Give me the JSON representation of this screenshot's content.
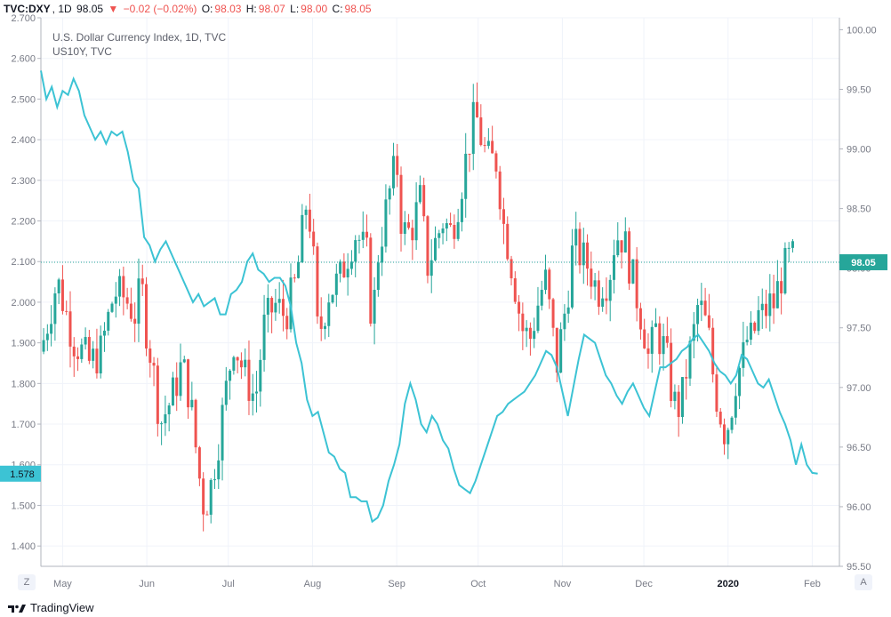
{
  "header": {
    "symbol": "TVC:DXY",
    "interval": "1D",
    "last": "98.05",
    "arrow": "▼",
    "change": "−0.02 (−0.02%)",
    "o_label": "O:",
    "o_value": "98.03",
    "h_label": "H:",
    "h_value": "98.07",
    "l_label": "L:",
    "l_value": "98.00",
    "c_label": "C:",
    "c_value": "98.05"
  },
  "legend": {
    "main": "U.S. Dollar Currency Index, 1D, TVC",
    "overlay": "US10Y, TVC"
  },
  "corners": {
    "left": "Z",
    "right": "A"
  },
  "brand": "TradingView",
  "colors": {
    "up": "#26a69a",
    "down": "#ef5350",
    "overlay": "#3cc3d4",
    "badge_main": "#26a69a",
    "badge_overlay": "#3cc3d4"
  },
  "chart_data": {
    "type": "line",
    "title": "U.S. Dollar Currency Index, 1D, TVC",
    "left_axis": {
      "series": "US10Y",
      "range": [
        1.35,
        2.7
      ],
      "ticks": [
        "2.700",
        "2.600",
        "2.500",
        "2.400",
        "2.300",
        "2.200",
        "2.100",
        "2.000",
        "1.900",
        "1.800",
        "1.700",
        "1.600",
        "1.500",
        "1.400"
      ]
    },
    "right_axis": {
      "series": "DXY",
      "range": [
        95.5,
        100.1
      ],
      "ticks": [
        "100.00",
        "99.50",
        "99.00",
        "98.50",
        "98.00",
        "97.50",
        "97.00",
        "96.50",
        "96.00",
        "95.50"
      ]
    },
    "months": [
      {
        "label": "May",
        "day": 8
      },
      {
        "label": "Jun",
        "day": 39
      },
      {
        "label": "Jul",
        "day": 69
      },
      {
        "label": "Aug",
        "day": 100
      },
      {
        "label": "Sep",
        "day": 131
      },
      {
        "label": "Oct",
        "day": 161
      },
      {
        "label": "Nov",
        "day": 192
      },
      {
        "label": "Dec",
        "day": 222
      },
      {
        "label": "2020",
        "day": 253,
        "bold": true
      },
      {
        "label": "Feb",
        "day": 284
      }
    ],
    "start_day": 0,
    "end_day": 294,
    "current_value_right": "98.05",
    "current_value_left": "1.578",
    "dxy_close_points": [
      [
        0,
        97.3
      ],
      [
        6,
        97.9
      ],
      [
        12,
        97.4
      ],
      [
        18,
        97.2
      ],
      [
        22,
        97.3
      ],
      [
        27,
        97.8
      ],
      [
        31,
        97.75
      ],
      [
        35,
        97.6
      ],
      [
        37,
        97.9
      ],
      [
        38,
        97.6
      ],
      [
        41,
        97.2
      ],
      [
        44,
        96.7
      ],
      [
        48,
        96.9
      ],
      [
        52,
        97.2
      ],
      [
        55,
        96.9
      ],
      [
        58,
        96.3
      ],
      [
        60,
        96.0
      ],
      [
        62,
        96.1
      ],
      [
        65,
        96.5
      ],
      [
        67,
        96.8
      ],
      [
        71,
        97.4
      ],
      [
        75,
        97.1
      ],
      [
        79,
        96.9
      ],
      [
        82,
        97.5
      ],
      [
        86,
        97.7
      ],
      [
        90,
        97.6
      ],
      [
        94,
        97.9
      ],
      [
        98,
        98.6
      ],
      [
        100,
        98.2
      ],
      [
        102,
        97.4
      ],
      [
        104,
        97.6
      ],
      [
        106,
        97.8
      ],
      [
        110,
        97.9
      ],
      [
        114,
        98.2
      ],
      [
        116,
        98.3
      ],
      [
        120,
        98.1
      ],
      [
        122,
        97.5
      ],
      [
        124,
        98.1
      ],
      [
        128,
        98.6
      ],
      [
        131,
        98.9
      ],
      [
        133,
        98.3
      ],
      [
        136,
        98.3
      ],
      [
        140,
        98.6
      ],
      [
        142,
        98.0
      ],
      [
        145,
        98.2
      ],
      [
        148,
        98.4
      ],
      [
        151,
        98.3
      ],
      [
        154,
        98.6
      ],
      [
        158,
        99.1
      ],
      [
        160,
        99.3
      ],
      [
        163,
        99.0
      ],
      [
        165,
        98.9
      ],
      [
        168,
        98.9
      ],
      [
        170,
        98.4
      ],
      [
        172,
        98.2
      ],
      [
        175,
        97.8
      ],
      [
        177,
        97.5
      ],
      [
        180,
        97.4
      ],
      [
        182,
        97.6
      ],
      [
        184,
        97.8
      ],
      [
        186,
        97.9
      ],
      [
        188,
        97.5
      ],
      [
        190,
        97.2
      ],
      [
        192,
        97.5
      ],
      [
        194,
        97.8
      ],
      [
        196,
        98.2
      ],
      [
        199,
        98.1
      ],
      [
        202,
        98.0
      ],
      [
        205,
        97.8
      ],
      [
        207,
        97.9
      ],
      [
        209,
        97.9
      ],
      [
        211,
        98.2
      ],
      [
        213,
        98.3
      ],
      [
        215,
        98.2
      ],
      [
        218,
        97.9
      ],
      [
        220,
        97.7
      ],
      [
        222,
        97.5
      ],
      [
        224,
        97.2
      ],
      [
        226,
        97.5
      ],
      [
        228,
        97.4
      ],
      [
        230,
        97.3
      ],
      [
        232,
        97.0
      ],
      [
        234,
        96.8
      ],
      [
        236,
        96.9
      ],
      [
        238,
        97.2
      ],
      [
        240,
        97.4
      ],
      [
        242,
        97.7
      ],
      [
        244,
        97.6
      ],
      [
        246,
        97.4
      ],
      [
        248,
        97.0
      ],
      [
        250,
        96.8
      ],
      [
        252,
        96.6
      ],
      [
        254,
        96.8
      ],
      [
        256,
        97.1
      ],
      [
        258,
        97.2
      ],
      [
        260,
        97.4
      ],
      [
        262,
        97.4
      ],
      [
        264,
        97.6
      ],
      [
        266,
        97.6
      ],
      [
        268,
        97.7
      ],
      [
        270,
        97.7
      ],
      [
        272,
        97.9
      ],
      [
        274,
        98.0
      ],
      [
        276,
        98.1
      ],
      [
        278,
        98.05
      ]
    ],
    "us10y_points": [
      [
        0,
        2.57
      ],
      [
        2,
        2.5
      ],
      [
        4,
        2.53
      ],
      [
        6,
        2.48
      ],
      [
        8,
        2.52
      ],
      [
        10,
        2.51
      ],
      [
        12,
        2.55
      ],
      [
        14,
        2.52
      ],
      [
        16,
        2.46
      ],
      [
        18,
        2.43
      ],
      [
        20,
        2.4
      ],
      [
        22,
        2.42
      ],
      [
        24,
        2.39
      ],
      [
        26,
        2.42
      ],
      [
        28,
        2.41
      ],
      [
        30,
        2.42
      ],
      [
        32,
        2.37
      ],
      [
        34,
        2.3
      ],
      [
        36,
        2.28
      ],
      [
        38,
        2.16
      ],
      [
        40,
        2.14
      ],
      [
        42,
        2.1
      ],
      [
        44,
        2.13
      ],
      [
        46,
        2.15
      ],
      [
        48,
        2.12
      ],
      [
        50,
        2.09
      ],
      [
        52,
        2.06
      ],
      [
        54,
        2.03
      ],
      [
        56,
        2.0
      ],
      [
        58,
        2.02
      ],
      [
        60,
        1.99
      ],
      [
        62,
        2.0
      ],
      [
        64,
        2.01
      ],
      [
        66,
        1.97
      ],
      [
        68,
        1.97
      ],
      [
        70,
        2.02
      ],
      [
        72,
        2.03
      ],
      [
        74,
        2.05
      ],
      [
        76,
        2.1
      ],
      [
        78,
        2.12
      ],
      [
        80,
        2.08
      ],
      [
        82,
        2.07
      ],
      [
        84,
        2.05
      ],
      [
        86,
        2.06
      ],
      [
        88,
        2.06
      ],
      [
        90,
        2.04
      ],
      [
        92,
        1.99
      ],
      [
        94,
        1.9
      ],
      [
        96,
        1.85
      ],
      [
        98,
        1.76
      ],
      [
        100,
        1.72
      ],
      [
        102,
        1.73
      ],
      [
        104,
        1.68
      ],
      [
        106,
        1.63
      ],
      [
        108,
        1.62
      ],
      [
        110,
        1.59
      ],
      [
        112,
        1.58
      ],
      [
        114,
        1.52
      ],
      [
        116,
        1.52
      ],
      [
        118,
        1.51
      ],
      [
        120,
        1.51
      ],
      [
        122,
        1.46
      ],
      [
        124,
        1.47
      ],
      [
        126,
        1.5
      ],
      [
        128,
        1.56
      ],
      [
        130,
        1.6
      ],
      [
        132,
        1.65
      ],
      [
        134,
        1.75
      ],
      [
        136,
        1.8
      ],
      [
        138,
        1.76
      ],
      [
        140,
        1.7
      ],
      [
        142,
        1.68
      ],
      [
        144,
        1.72
      ],
      [
        146,
        1.7
      ],
      [
        148,
        1.66
      ],
      [
        150,
        1.64
      ],
      [
        152,
        1.59
      ],
      [
        154,
        1.55
      ],
      [
        156,
        1.54
      ],
      [
        158,
        1.53
      ],
      [
        160,
        1.56
      ],
      [
        162,
        1.6
      ],
      [
        164,
        1.64
      ],
      [
        166,
        1.68
      ],
      [
        168,
        1.72
      ],
      [
        170,
        1.73
      ],
      [
        172,
        1.75
      ],
      [
        174,
        1.76
      ],
      [
        176,
        1.77
      ],
      [
        178,
        1.78
      ],
      [
        180,
        1.8
      ],
      [
        182,
        1.82
      ],
      [
        184,
        1.85
      ],
      [
        186,
        1.88
      ],
      [
        188,
        1.87
      ],
      [
        190,
        1.84
      ],
      [
        192,
        1.78
      ],
      [
        194,
        1.72
      ],
      [
        196,
        1.79
      ],
      [
        198,
        1.86
      ],
      [
        200,
        1.92
      ],
      [
        202,
        1.91
      ],
      [
        204,
        1.9
      ],
      [
        206,
        1.86
      ],
      [
        208,
        1.82
      ],
      [
        210,
        1.8
      ],
      [
        212,
        1.77
      ],
      [
        214,
        1.75
      ],
      [
        216,
        1.78
      ],
      [
        218,
        1.8
      ],
      [
        220,
        1.77
      ],
      [
        222,
        1.74
      ],
      [
        224,
        1.72
      ],
      [
        226,
        1.78
      ],
      [
        228,
        1.84
      ],
      [
        230,
        1.84
      ],
      [
        232,
        1.85
      ],
      [
        234,
        1.86
      ],
      [
        236,
        1.88
      ],
      [
        238,
        1.89
      ],
      [
        240,
        1.91
      ],
      [
        242,
        1.92
      ],
      [
        244,
        1.9
      ],
      [
        246,
        1.88
      ],
      [
        248,
        1.85
      ],
      [
        250,
        1.83
      ],
      [
        252,
        1.82
      ],
      [
        254,
        1.8
      ],
      [
        256,
        1.82
      ],
      [
        258,
        1.87
      ],
      [
        260,
        1.86
      ],
      [
        262,
        1.83
      ],
      [
        264,
        1.8
      ],
      [
        266,
        1.79
      ],
      [
        268,
        1.81
      ],
      [
        270,
        1.77
      ],
      [
        272,
        1.73
      ],
      [
        274,
        1.7
      ],
      [
        276,
        1.66
      ],
      [
        278,
        1.6
      ],
      [
        280,
        1.65
      ],
      [
        282,
        1.6
      ],
      [
        284,
        1.58
      ],
      [
        286,
        1.578
      ]
    ]
  }
}
